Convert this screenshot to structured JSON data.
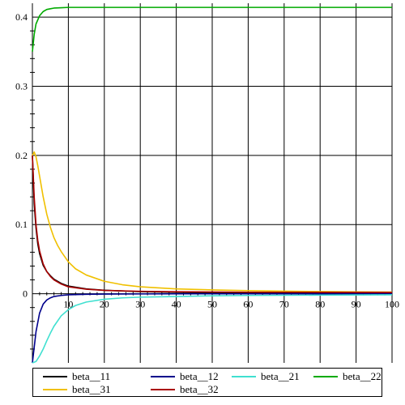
{
  "chart_data": {
    "type": "line",
    "title": "",
    "xlabel": "",
    "ylabel": "",
    "xlim": [
      0,
      100
    ],
    "ylim": [
      -0.1,
      0.42
    ],
    "grid": true,
    "legend_position": "bottom",
    "x_ticks": [
      {
        "v": 10,
        "label": "10"
      },
      {
        "v": 20,
        "label": "20"
      },
      {
        "v": 30,
        "label": "30"
      },
      {
        "v": 40,
        "label": "40"
      },
      {
        "v": 50,
        "label": "50"
      },
      {
        "v": 60,
        "label": "60"
      },
      {
        "v": 70,
        "label": "70"
      },
      {
        "v": 80,
        "label": "80"
      },
      {
        "v": 90,
        "label": "90"
      },
      {
        "v": 100,
        "label": "100"
      }
    ],
    "y_ticks": [
      {
        "v": 0,
        "label": "0"
      },
      {
        "v": 0.1,
        "label": "0.1"
      },
      {
        "v": 0.2,
        "label": "0.2"
      },
      {
        "v": 0.3,
        "label": "0.3"
      },
      {
        "v": 0.4,
        "label": "0.4"
      }
    ],
    "series": [
      {
        "name": "beta__11",
        "color": "#000000",
        "x": [
          0,
          0.5,
          1,
          1.5,
          2,
          3,
          4,
          5,
          6,
          8,
          10,
          15,
          20,
          30,
          40,
          60,
          80,
          100
        ],
        "y": [
          0.2,
          0.13,
          0.095,
          0.072,
          0.058,
          0.041,
          0.032,
          0.026,
          0.021,
          0.015,
          0.011,
          0.007,
          0.005,
          0.003,
          0.002,
          0.001,
          0.0007,
          0.0005
        ]
      },
      {
        "name": "beta__12",
        "color": "#00008b",
        "x": [
          0,
          1,
          2,
          3,
          4,
          5,
          6,
          8,
          10,
          15,
          20,
          30,
          50,
          100
        ],
        "y": [
          -0.1,
          -0.055,
          -0.028,
          -0.015,
          -0.009,
          -0.006,
          -0.004,
          -0.0025,
          -0.0015,
          -0.0008,
          -0.0005,
          -0.0003,
          -0.0001,
          0
        ]
      },
      {
        "name": "beta__21",
        "color": "#40e0d0",
        "x": [
          0,
          1,
          2,
          3,
          4,
          5,
          6,
          8,
          10,
          12,
          15,
          20,
          25,
          30,
          40,
          50,
          60,
          80,
          100
        ],
        "y": [
          -0.1,
          -0.098,
          -0.09,
          -0.08,
          -0.068,
          -0.057,
          -0.047,
          -0.032,
          -0.023,
          -0.017,
          -0.012,
          -0.008,
          -0.006,
          -0.005,
          -0.004,
          -0.003,
          -0.0025,
          -0.002,
          -0.0015
        ]
      },
      {
        "name": "beta__22",
        "color": "#00aa00",
        "x": [
          0,
          0.5,
          1,
          2,
          3,
          4,
          5,
          6,
          8,
          10,
          15,
          20,
          40,
          60,
          80,
          100
        ],
        "y": [
          0.35,
          0.375,
          0.39,
          0.402,
          0.408,
          0.411,
          0.412,
          0.413,
          0.4135,
          0.414,
          0.414,
          0.414,
          0.414,
          0.414,
          0.414,
          0.414
        ]
      },
      {
        "name": "beta__31",
        "color": "#f0c000",
        "x": [
          0,
          0.5,
          1,
          1.5,
          2,
          3,
          4,
          5,
          6,
          7,
          8,
          10,
          12,
          15,
          20,
          25,
          30,
          40,
          50,
          60,
          70,
          80,
          90,
          100
        ],
        "y": [
          0.2,
          0.205,
          0.198,
          0.185,
          0.17,
          0.14,
          0.115,
          0.096,
          0.081,
          0.07,
          0.061,
          0.046,
          0.036,
          0.027,
          0.018,
          0.013,
          0.01,
          0.007,
          0.0055,
          0.0045,
          0.0037,
          0.0031,
          0.0027,
          0.0024
        ]
      },
      {
        "name": "beta__32",
        "color": "#aa0000",
        "x": [
          0,
          0.5,
          1,
          1.5,
          2,
          3,
          4,
          5,
          6,
          8,
          10,
          15,
          20,
          30,
          40,
          60,
          80,
          100
        ],
        "y": [
          0.2,
          0.14,
          0.1,
          0.077,
          0.062,
          0.043,
          0.032,
          0.025,
          0.02,
          0.014,
          0.01,
          0.0065,
          0.0048,
          0.0035,
          0.0028,
          0.0022,
          0.002,
          0.0018
        ]
      }
    ]
  }
}
